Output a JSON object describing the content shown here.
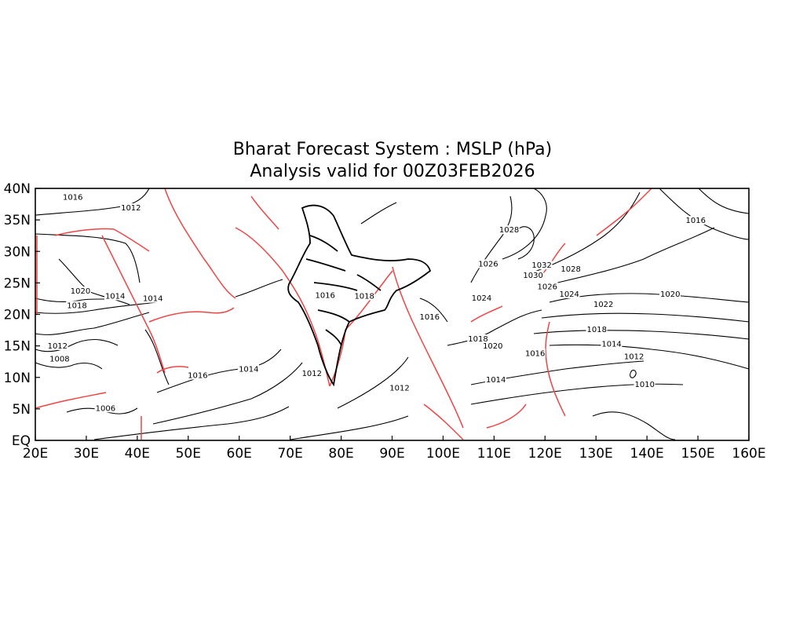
{
  "title": {
    "line1": "Bharat Forecast System : MSLP (hPa)",
    "line2": "Analysis valid for 00Z03FEB2026"
  },
  "map": {
    "lon_range": [
      20,
      160
    ],
    "lat_range": [
      0,
      40
    ],
    "x_ticks": [
      "20E",
      "30E",
      "40E",
      "50E",
      "60E",
      "70E",
      "80E",
      "90E",
      "100E",
      "110E",
      "120E",
      "130E",
      "140E",
      "150E",
      "160E"
    ],
    "y_ticks": [
      "EQ",
      "5N",
      "10N",
      "15N",
      "20N",
      "25N",
      "30N",
      "35N",
      "40N"
    ],
    "coastline_color": "#ee4444",
    "isobar_color": "#000000",
    "isobar_labels": [
      {
        "text": "1016",
        "lon": 25.4,
        "lat": 38.2
      },
      {
        "text": "1012",
        "lon": 36.8,
        "lat": 36.5
      },
      {
        "text": "1020",
        "lon": 26.9,
        "lat": 23.3
      },
      {
        "text": "1014",
        "lon": 33.7,
        "lat": 22.5
      },
      {
        "text": "1014",
        "lon": 41.1,
        "lat": 22.1
      },
      {
        "text": "1018",
        "lon": 26.2,
        "lat": 21.0
      },
      {
        "text": "1012",
        "lon": 22.4,
        "lat": 14.6
      },
      {
        "text": "1008",
        "lon": 22.8,
        "lat": 12.5
      },
      {
        "text": "1006",
        "lon": 31.8,
        "lat": 4.7
      },
      {
        "text": "1016",
        "lon": 49.9,
        "lat": 9.9
      },
      {
        "text": "1014",
        "lon": 59.9,
        "lat": 10.9
      },
      {
        "text": "1016",
        "lon": 74.9,
        "lat": 22.6
      },
      {
        "text": "1018",
        "lon": 82.6,
        "lat": 22.5
      },
      {
        "text": "1012",
        "lon": 72.3,
        "lat": 10.2
      },
      {
        "text": "1012",
        "lon": 89.5,
        "lat": 7.9
      },
      {
        "text": "1016",
        "lon": 95.4,
        "lat": 19.2
      },
      {
        "text": "1018",
        "lon": 104.9,
        "lat": 15.7
      },
      {
        "text": "1020",
        "lon": 107.8,
        "lat": 14.6
      },
      {
        "text": "1024",
        "lon": 105.6,
        "lat": 22.2
      },
      {
        "text": "1014",
        "lon": 108.4,
        "lat": 9.2
      },
      {
        "text": "1028",
        "lon": 111.0,
        "lat": 33.0
      },
      {
        "text": "1026",
        "lon": 106.9,
        "lat": 27.6
      },
      {
        "text": "1032",
        "lon": 117.4,
        "lat": 27.4
      },
      {
        "text": "1030",
        "lon": 115.7,
        "lat": 25.8
      },
      {
        "text": "1028",
        "lon": 123.1,
        "lat": 26.8
      },
      {
        "text": "1026",
        "lon": 118.5,
        "lat": 24.0
      },
      {
        "text": "1024",
        "lon": 122.8,
        "lat": 22.8
      },
      {
        "text": "1022",
        "lon": 129.5,
        "lat": 21.2
      },
      {
        "text": "1020",
        "lon": 142.6,
        "lat": 22.8
      },
      {
        "text": "1016",
        "lon": 147.6,
        "lat": 34.5
      },
      {
        "text": "1018",
        "lon": 128.2,
        "lat": 17.2
      },
      {
        "text": "1016",
        "lon": 116.1,
        "lat": 13.4
      },
      {
        "text": "1014",
        "lon": 131.1,
        "lat": 14.9
      },
      {
        "text": "1012",
        "lon": 135.5,
        "lat": 12.9
      },
      {
        "text": "1010",
        "lon": 137.6,
        "lat": 8.5
      }
    ]
  }
}
